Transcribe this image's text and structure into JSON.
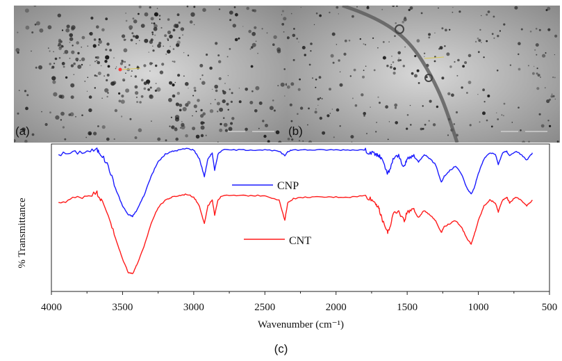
{
  "panels": {
    "a": {
      "label": "(a)"
    },
    "b": {
      "label": "(b)"
    },
    "c": {
      "caption": "(c)"
    }
  },
  "chart_data": {
    "type": "line",
    "title": "",
    "xlabel": "Wavenumber (cm⁻¹)",
    "ylabel": "% Transmittance",
    "xlim": [
      4000,
      500
    ],
    "x_reversed": true,
    "x_ticks": [
      4000,
      3500,
      3000,
      2500,
      2000,
      1500,
      1000,
      500
    ],
    "ylim": [
      0,
      100
    ],
    "y_ticks_shown": false,
    "grid": false,
    "legend_placement": "inline-center",
    "series": [
      {
        "name": "CNP",
        "color": "#1a1aff",
        "x": [
          3950,
          3850,
          3750,
          3680,
          3650,
          3600,
          3550,
          3500,
          3460,
          3430,
          3400,
          3350,
          3300,
          3250,
          3200,
          3150,
          3100,
          3050,
          3000,
          2960,
          2925,
          2900,
          2870,
          2853,
          2830,
          2800,
          2700,
          2600,
          2500,
          2400,
          2360,
          2340,
          2300,
          2200,
          2100,
          2000,
          1900,
          1800,
          1760,
          1720,
          1700,
          1680,
          1640,
          1620,
          1600,
          1560,
          1520,
          1500,
          1460,
          1420,
          1380,
          1340,
          1300,
          1260,
          1240,
          1200,
          1160,
          1120,
          1080,
          1050,
          1030,
          1000,
          960,
          920,
          880,
          860,
          830,
          800,
          780,
          740,
          700,
          660,
          620
        ],
        "values": [
          93,
          94,
          95,
          96,
          93,
          85,
          70,
          58,
          52,
          51,
          55,
          65,
          78,
          88,
          93,
          95,
          96,
          97,
          96,
          90,
          78,
          90,
          94,
          82,
          93,
          96,
          96,
          96,
          96,
          95,
          92,
          95,
          96,
          96,
          96,
          96,
          96,
          96,
          94,
          93,
          92,
          90,
          80,
          82,
          90,
          92,
          84,
          90,
          92,
          88,
          93,
          90,
          86,
          74,
          78,
          82,
          85,
          80,
          70,
          66,
          70,
          80,
          90,
          94,
          93,
          86,
          94,
          95,
          92,
          95,
          93,
          89,
          94
        ]
      },
      {
        "name": "CNT",
        "color": "#ff1a1a",
        "x": [
          3950,
          3850,
          3750,
          3680,
          3650,
          3600,
          3550,
          3500,
          3460,
          3430,
          3400,
          3350,
          3300,
          3250,
          3200,
          3150,
          3100,
          3050,
          3000,
          2960,
          2925,
          2900,
          2870,
          2853,
          2830,
          2800,
          2700,
          2600,
          2500,
          2400,
          2360,
          2340,
          2300,
          2200,
          2100,
          2000,
          1900,
          1800,
          1760,
          1720,
          1700,
          1680,
          1640,
          1620,
          1600,
          1560,
          1520,
          1500,
          1460,
          1420,
          1380,
          1340,
          1300,
          1260,
          1240,
          1200,
          1160,
          1120,
          1080,
          1050,
          1030,
          1000,
          960,
          920,
          880,
          860,
          830,
          800,
          780,
          740,
          700,
          660,
          620
        ],
        "values": [
          60,
          63,
          65,
          67,
          62,
          52,
          36,
          22,
          13,
          12,
          18,
          30,
          46,
          57,
          62,
          64,
          65,
          66,
          64,
          58,
          46,
          58,
          62,
          52,
          62,
          65,
          65,
          65,
          65,
          62,
          48,
          60,
          63,
          64,
          64,
          64,
          64,
          65,
          63,
          60,
          56,
          50,
          40,
          44,
          52,
          54,
          48,
          54,
          56,
          50,
          55,
          52,
          48,
          40,
          44,
          46,
          48,
          44,
          36,
          32,
          38,
          48,
          58,
          62,
          60,
          54,
          62,
          64,
          60,
          64,
          62,
          58,
          62
        ]
      }
    ]
  }
}
